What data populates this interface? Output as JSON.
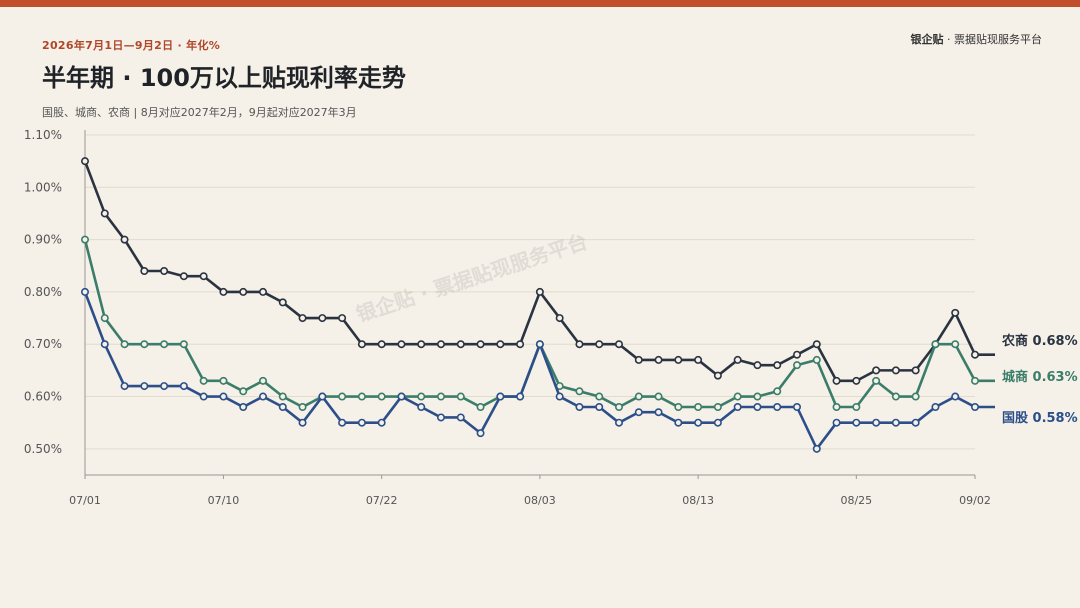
{
  "header": {
    "period": "2026年7月1日—9月2日 · 年化%",
    "title": "半年期 · 100万以上贴现利率走势",
    "note": "国股、城商、农商 | 8月对应2027年2月，9月起对应2027年3月",
    "brand_name": "银企贴",
    "brand_tagline": "· 票据贴现服务平台"
  },
  "watermark": "银企贴 · 票据贴现服务平台",
  "chart_data": {
    "type": "line",
    "title": "半年期 · 100万以上贴现利率走势",
    "xlabel": "",
    "ylabel": "",
    "ylim": [
      0.45,
      1.1
    ],
    "yticks": [
      "0.50%",
      "0.60%",
      "0.70%",
      "0.80%",
      "0.90%",
      "1.00%",
      "1.10%"
    ],
    "ytick_values": [
      0.5,
      0.6,
      0.7,
      0.8,
      0.9,
      1.0,
      1.1
    ],
    "xticks": [
      "07/01",
      "07/10",
      "07/22",
      "08/03",
      "08/13",
      "08/25",
      "09/02"
    ],
    "xtick_index": [
      0,
      7,
      15,
      23,
      31,
      39,
      45
    ],
    "point_count": 46,
    "grid": true,
    "series": [
      {
        "name": "农商",
        "label": "农商 0.68%",
        "color": "#2a3340",
        "values": [
          1.05,
          0.95,
          0.9,
          0.84,
          0.84,
          0.83,
          0.83,
          0.8,
          0.8,
          0.8,
          0.78,
          0.75,
          0.75,
          0.75,
          0.7,
          0.7,
          0.7,
          0.7,
          0.7,
          0.7,
          0.7,
          0.7,
          0.7,
          0.8,
          0.75,
          0.7,
          0.7,
          0.7,
          0.67,
          0.67,
          0.67,
          0.67,
          0.64,
          0.67,
          0.66,
          0.66,
          0.68,
          0.7,
          0.63,
          0.63,
          0.65,
          0.65,
          0.65,
          0.7,
          0.76,
          0.68
        ]
      },
      {
        "name": "城商",
        "label": "城商 0.63%",
        "color": "#3a7d6a",
        "values": [
          0.9,
          0.75,
          0.7,
          0.7,
          0.7,
          0.7,
          0.63,
          0.63,
          0.61,
          0.63,
          0.6,
          0.58,
          0.6,
          0.6,
          0.6,
          0.6,
          0.6,
          0.6,
          0.6,
          0.6,
          0.58,
          0.6,
          0.6,
          0.7,
          0.62,
          0.61,
          0.6,
          0.58,
          0.6,
          0.6,
          0.58,
          0.58,
          0.58,
          0.6,
          0.6,
          0.61,
          0.66,
          0.67,
          0.58,
          0.58,
          0.63,
          0.6,
          0.6,
          0.7,
          0.7,
          0.63
        ]
      },
      {
        "name": "国股",
        "label": "国股 0.58%",
        "color": "#2c4f8a",
        "values": [
          0.8,
          0.7,
          0.62,
          0.62,
          0.62,
          0.62,
          0.6,
          0.6,
          0.58,
          0.6,
          0.58,
          0.55,
          0.6,
          0.55,
          0.55,
          0.55,
          0.6,
          0.58,
          0.56,
          0.56,
          0.53,
          0.6,
          0.6,
          0.7,
          0.6,
          0.58,
          0.58,
          0.55,
          0.57,
          0.57,
          0.55,
          0.55,
          0.55,
          0.58,
          0.58,
          0.58,
          0.58,
          0.5,
          0.55,
          0.55,
          0.55,
          0.55,
          0.55,
          0.58,
          0.6,
          0.58
        ]
      }
    ]
  }
}
